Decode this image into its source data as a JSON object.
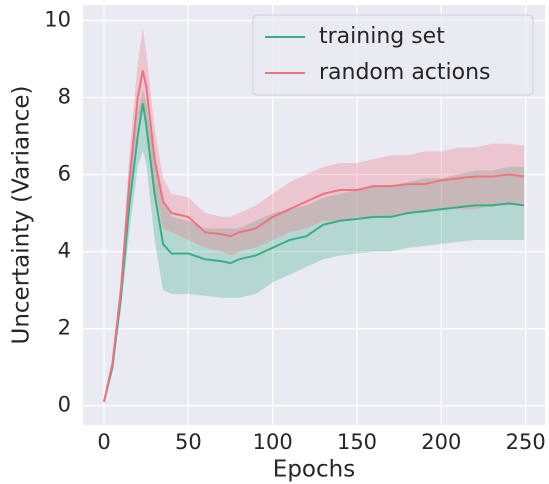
{
  "chart_data": {
    "type": "line",
    "x_label": "Epochs",
    "y_label": "Uncertainty (Variance)",
    "x": [
      0,
      5,
      10,
      15,
      20,
      23,
      25,
      30,
      35,
      40,
      50,
      60,
      70,
      75,
      80,
      90,
      100,
      110,
      120,
      130,
      140,
      150,
      160,
      170,
      180,
      190,
      200,
      210,
      220,
      230,
      240,
      249
    ],
    "series": [
      {
        "name": "training set",
        "color": "#3aad86",
        "values": [
          0.1,
          1.0,
          2.8,
          5.2,
          7.0,
          7.85,
          7.3,
          5.5,
          4.2,
          3.95,
          3.95,
          3.8,
          3.75,
          3.7,
          3.8,
          3.9,
          4.1,
          4.3,
          4.4,
          4.7,
          4.8,
          4.85,
          4.9,
          4.9,
          5.0,
          5.05,
          5.1,
          5.15,
          5.2,
          5.2,
          5.25,
          5.2
        ],
        "lower": [
          0.05,
          0.9,
          2.5,
          4.5,
          6.2,
          6.6,
          6.3,
          4.3,
          3.0,
          2.9,
          2.9,
          2.85,
          2.8,
          2.8,
          2.8,
          2.9,
          3.2,
          3.4,
          3.6,
          3.8,
          3.9,
          3.95,
          4.0,
          4.0,
          4.1,
          4.15,
          4.2,
          4.25,
          4.3,
          4.3,
          4.3,
          4.3
        ],
        "upper": [
          0.15,
          1.1,
          3.1,
          5.9,
          7.6,
          8.2,
          7.9,
          6.3,
          5.4,
          4.9,
          4.8,
          4.6,
          4.6,
          4.6,
          4.6,
          4.8,
          5.0,
          5.1,
          5.2,
          5.4,
          5.5,
          5.6,
          5.7,
          5.7,
          5.8,
          5.9,
          5.9,
          6.0,
          6.1,
          6.1,
          6.2,
          6.2
        ]
      },
      {
        "name": "random actions",
        "color": "#f0727f",
        "values": [
          0.1,
          1.1,
          3.0,
          5.8,
          8.0,
          8.7,
          8.3,
          6.4,
          5.3,
          5.0,
          4.9,
          4.5,
          4.45,
          4.4,
          4.5,
          4.6,
          4.9,
          5.1,
          5.3,
          5.5,
          5.6,
          5.6,
          5.7,
          5.7,
          5.75,
          5.75,
          5.85,
          5.9,
          5.95,
          5.95,
          6.0,
          5.95
        ],
        "lower": [
          0.05,
          1.0,
          2.8,
          5.4,
          7.4,
          7.9,
          7.5,
          5.6,
          4.6,
          4.5,
          4.3,
          4.1,
          4.0,
          3.9,
          4.0,
          4.1,
          4.3,
          4.5,
          4.6,
          4.8,
          4.8,
          4.9,
          4.9,
          4.9,
          5.0,
          5.0,
          5.1,
          5.1,
          5.1,
          5.2,
          5.2,
          5.2
        ],
        "upper": [
          0.15,
          1.2,
          3.3,
          6.5,
          8.9,
          9.8,
          9.2,
          7.2,
          5.9,
          5.5,
          5.4,
          5.0,
          4.9,
          4.9,
          5.0,
          5.2,
          5.5,
          5.8,
          6.0,
          6.2,
          6.3,
          6.3,
          6.4,
          6.5,
          6.5,
          6.6,
          6.6,
          6.7,
          6.7,
          6.8,
          6.8,
          6.75
        ]
      }
    ],
    "xlim": [
      -12.45,
      261.45
    ],
    "xticks": [
      0,
      50,
      100,
      150,
      200,
      250
    ],
    "ylim": [
      -0.5,
      10.4
    ],
    "yticks": [
      0,
      2,
      4,
      6,
      8,
      10
    ],
    "grid": true,
    "legend": "upper right"
  }
}
